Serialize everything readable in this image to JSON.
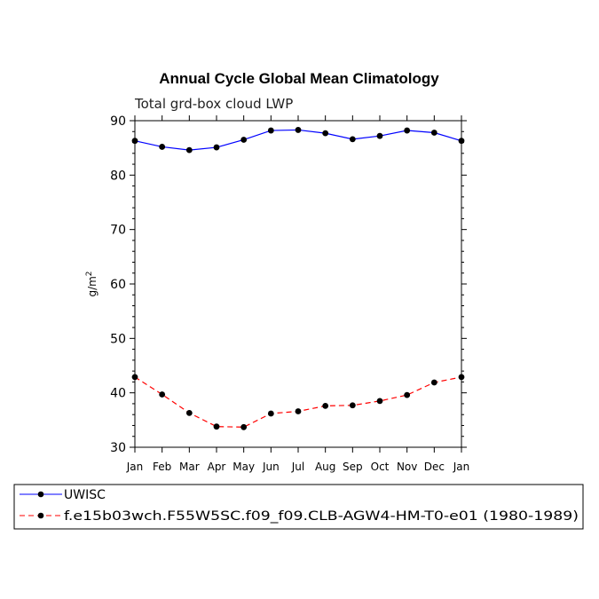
{
  "chart_data": {
    "type": "line",
    "title": "Annual Cycle Global Mean Climatology",
    "subtitle": "Total grd-box cloud LWP",
    "ylabel": "g/m",
    "ylabel_superscript": "2",
    "xlabel": "",
    "categories": [
      "Jan",
      "Feb",
      "Mar",
      "Apr",
      "May",
      "Jun",
      "Jul",
      "Aug",
      "Sep",
      "Oct",
      "Nov",
      "Dec",
      "Jan"
    ],
    "ylim": [
      30,
      90
    ],
    "yticks": [
      30,
      40,
      50,
      60,
      70,
      80,
      90
    ],
    "yminor_step": 2,
    "series": [
      {
        "name": "UWISC",
        "color": "#0000ff",
        "dash": "solid",
        "values": [
          86.3,
          85.2,
          84.6,
          85.1,
          86.5,
          88.2,
          88.3,
          87.7,
          86.6,
          87.2,
          88.2,
          87.8,
          86.3
        ]
      },
      {
        "name": "f.e15b03wch.F55W5SC.f09_f09.CLB-AGW4-HM-T0-e01 (1980-1989)",
        "color": "#ff0000",
        "dash": "dashed",
        "values": [
          42.9,
          39.7,
          36.3,
          33.8,
          33.7,
          36.2,
          36.6,
          37.6,
          37.7,
          38.5,
          39.6,
          41.9,
          42.9
        ]
      }
    ],
    "grid": false,
    "legend_position": "bottom"
  }
}
